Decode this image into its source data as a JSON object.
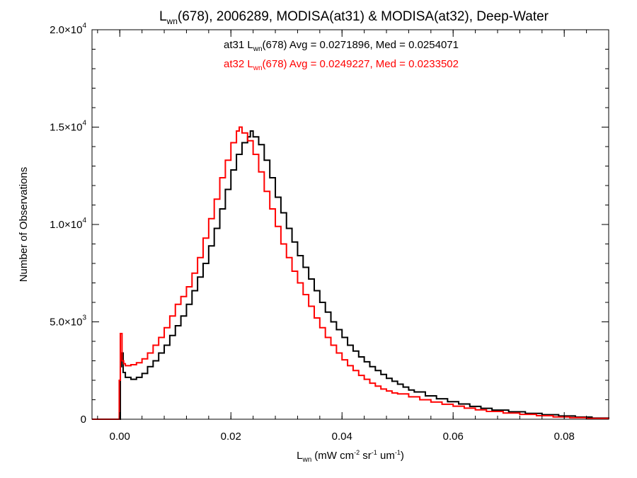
{
  "chart_data": {
    "type": "line",
    "step": true,
    "title": {
      "prefix": "L",
      "sub": "wn",
      "rest": "(678), 2006289, MODISA(at31) & MODISA(at32), Deep-Water"
    },
    "xlabel": {
      "prefix": "L",
      "sub": "wn",
      "units": [
        "(mW cm",
        "-2",
        " sr",
        "-1",
        " um",
        "-1",
        ")"
      ]
    },
    "ylabel": "Number of Observations",
    "xlim": [
      -0.005,
      0.088
    ],
    "ylim": [
      0,
      20000
    ],
    "xticks": [
      {
        "value": 0.0,
        "label": "0.00"
      },
      {
        "value": 0.02,
        "label": "0.02"
      },
      {
        "value": 0.04,
        "label": "0.04"
      },
      {
        "value": 0.06,
        "label": "0.06"
      },
      {
        "value": 0.08,
        "label": "0.08"
      }
    ],
    "yticks": [
      {
        "value": 0,
        "mantissa": "0",
        "exp": ""
      },
      {
        "value": 5000,
        "mantissa": "5.0×10",
        "exp": "3"
      },
      {
        "value": 10000,
        "mantissa": "1.0×10",
        "exp": "4"
      },
      {
        "value": 15000,
        "mantissa": "1.5×10",
        "exp": "4"
      },
      {
        "value": 20000,
        "mantissa": "2.0×10",
        "exp": "4"
      }
    ],
    "grid": false,
    "legend_position": "top-center",
    "series": [
      {
        "name": "at31",
        "color": "#000000",
        "legend": {
          "pre": "at31 L",
          "sub": "wn",
          "post": "(678) Avg = 0.0271896, Med = 0.0254071"
        },
        "x": [
          -0.005,
          -0.0001,
          0.0001,
          0.0003,
          0.0006,
          0.001,
          0.002,
          0.003,
          0.004,
          0.005,
          0.006,
          0.007,
          0.008,
          0.009,
          0.01,
          0.011,
          0.012,
          0.013,
          0.014,
          0.015,
          0.016,
          0.017,
          0.018,
          0.019,
          0.02,
          0.021,
          0.022,
          0.023,
          0.0235,
          0.024,
          0.025,
          0.026,
          0.027,
          0.028,
          0.029,
          0.03,
          0.031,
          0.032,
          0.033,
          0.034,
          0.035,
          0.036,
          0.037,
          0.038,
          0.039,
          0.04,
          0.041,
          0.042,
          0.043,
          0.044,
          0.045,
          0.046,
          0.047,
          0.048,
          0.049,
          0.05,
          0.051,
          0.052,
          0.053,
          0.055,
          0.057,
          0.059,
          0.061,
          0.063,
          0.065,
          0.067,
          0.07,
          0.073,
          0.076,
          0.079,
          0.082,
          0.085,
          0.088
        ],
        "y": [
          0,
          0,
          2700,
          3400,
          2400,
          2150,
          2050,
          2150,
          2350,
          2700,
          3000,
          3400,
          3800,
          4300,
          4800,
          5300,
          5900,
          6600,
          7300,
          8000,
          8900,
          9800,
          10800,
          11800,
          12800,
          13600,
          14200,
          14500,
          14800,
          14500,
          14100,
          13300,
          12400,
          11400,
          10600,
          9800,
          9100,
          8400,
          7800,
          7200,
          6600,
          6000,
          5500,
          5000,
          4600,
          4200,
          3800,
          3500,
          3200,
          2950,
          2700,
          2500,
          2300,
          2100,
          1950,
          1800,
          1650,
          1500,
          1400,
          1200,
          1050,
          900,
          780,
          660,
          560,
          470,
          380,
          300,
          230,
          170,
          110,
          60,
          20
        ]
      },
      {
        "name": "at32",
        "color": "#ff0000",
        "legend": {
          "pre": "at32 L",
          "sub": "wn",
          "post": "(678) Avg = 0.0249227, Med = 0.0233502"
        },
        "x": [
          -0.005,
          -0.0003,
          -0.0001,
          0.0001,
          0.0004,
          0.0007,
          0.001,
          0.002,
          0.003,
          0.004,
          0.005,
          0.006,
          0.007,
          0.008,
          0.009,
          0.01,
          0.011,
          0.012,
          0.013,
          0.014,
          0.015,
          0.016,
          0.017,
          0.018,
          0.019,
          0.02,
          0.021,
          0.0215,
          0.022,
          0.023,
          0.024,
          0.025,
          0.026,
          0.027,
          0.028,
          0.029,
          0.03,
          0.031,
          0.032,
          0.033,
          0.034,
          0.035,
          0.036,
          0.037,
          0.038,
          0.039,
          0.04,
          0.041,
          0.042,
          0.043,
          0.044,
          0.045,
          0.046,
          0.047,
          0.048,
          0.049,
          0.05,
          0.052,
          0.054,
          0.056,
          0.058,
          0.06,
          0.062,
          0.064,
          0.066,
          0.069,
          0.072,
          0.075,
          0.078,
          0.081,
          0.084,
          0.088
        ],
        "y": [
          0,
          0,
          2000,
          4400,
          3000,
          2850,
          2750,
          2800,
          2900,
          3100,
          3400,
          3800,
          4200,
          4700,
          5300,
          5900,
          6300,
          6800,
          7500,
          8300,
          9300,
          10300,
          11300,
          12400,
          13300,
          14200,
          14800,
          15000,
          14700,
          14300,
          13600,
          12700,
          11700,
          10800,
          9900,
          9000,
          8300,
          7600,
          7000,
          6400,
          5800,
          5200,
          4700,
          4200,
          3800,
          3400,
          3050,
          2750,
          2500,
          2250,
          2050,
          1850,
          1700,
          1550,
          1450,
          1350,
          1300,
          1150,
          1000,
          880,
          770,
          670,
          570,
          480,
          400,
          320,
          250,
          180,
          120,
          80,
          40,
          10
        ]
      }
    ]
  }
}
